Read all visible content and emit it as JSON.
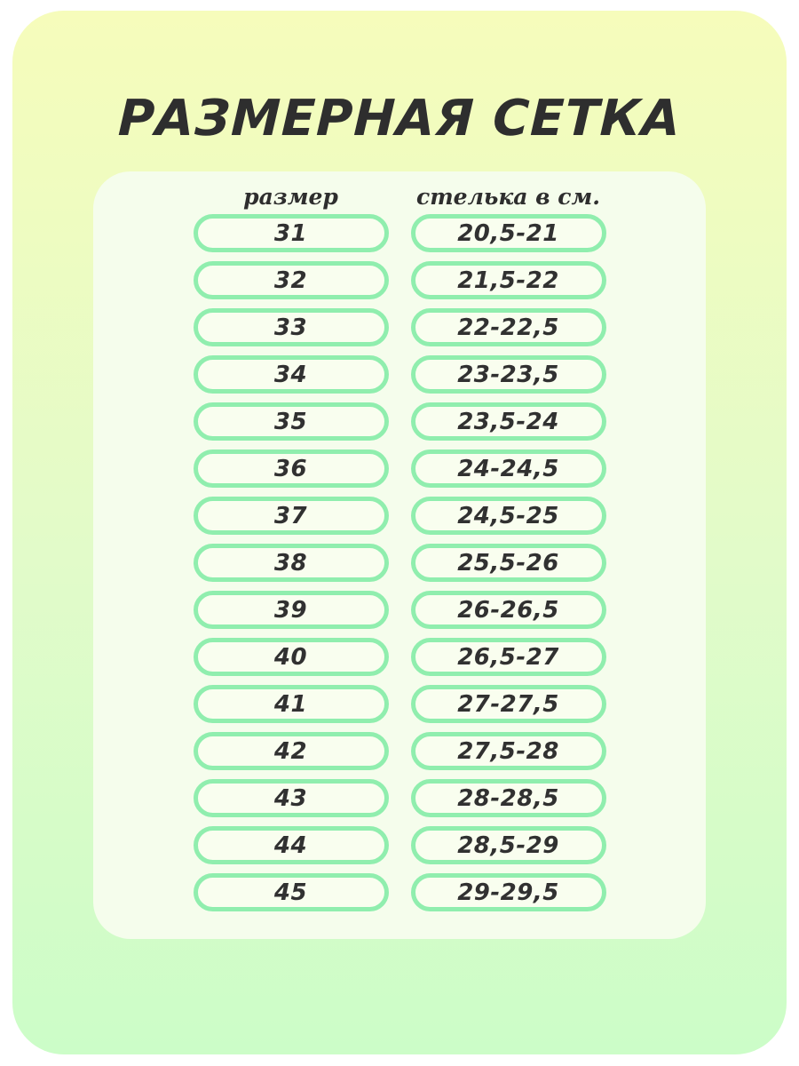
{
  "page": {
    "title": "РАЗМЕРНАЯ СЕТКА"
  },
  "table": {
    "headers": {
      "size": "размер",
      "insole": "стелька в см."
    },
    "rows": [
      {
        "size": "31",
        "insole": "20,5-21"
      },
      {
        "size": "32",
        "insole": "21,5-22"
      },
      {
        "size": "33",
        "insole": "22-22,5"
      },
      {
        "size": "34",
        "insole": "23-23,5"
      },
      {
        "size": "35",
        "insole": "23,5-24"
      },
      {
        "size": "36",
        "insole": "24-24,5"
      },
      {
        "size": "37",
        "insole": "24,5-25"
      },
      {
        "size": "38",
        "insole": "25,5-26"
      },
      {
        "size": "39",
        "insole": "26-26,5"
      },
      {
        "size": "40",
        "insole": "26,5-27"
      },
      {
        "size": "41",
        "insole": "27-27,5"
      },
      {
        "size": "42",
        "insole": "27,5-28"
      },
      {
        "size": "43",
        "insole": "28-28,5"
      },
      {
        "size": "44",
        "insole": "28,5-29"
      },
      {
        "size": "45",
        "insole": "29-29,5"
      }
    ]
  },
  "colors": {
    "bg_top": "#f6fcbb",
    "bg_mid": "#e2fbc9",
    "bg_bottom": "#ccfdc8",
    "card_bg": "#f5fdec",
    "pill_bg": "#f9feef",
    "pill_border": "#90eeae",
    "text": "#2e2e2e"
  }
}
